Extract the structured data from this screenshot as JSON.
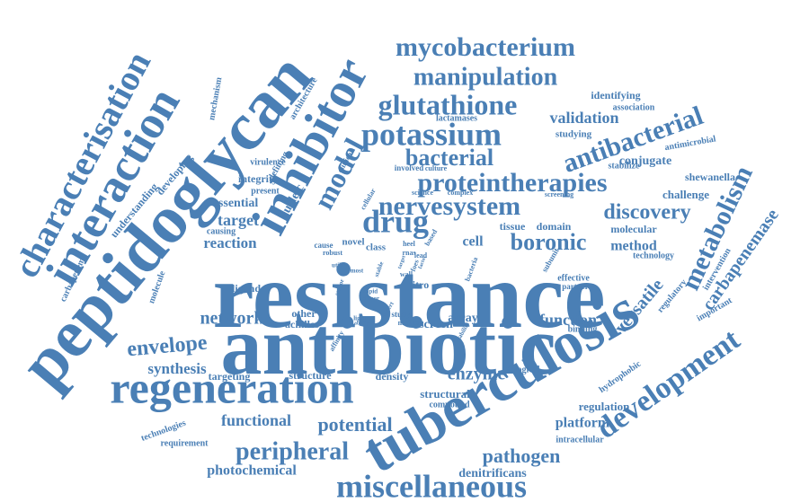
{
  "colors": {
    "word": "#4a7fb5",
    "background": "#ffffff"
  },
  "words": [
    "resistance",
    "antibiotic",
    "peptidoglycan",
    "tuberculosis",
    "regeneration",
    "interaction",
    "characterisation",
    "inhibitor",
    "development",
    "miscellaneous",
    "mycobacterium",
    "manipulation",
    "glutathione",
    "potassium",
    "antibacterial",
    "proteintherapies",
    "metabolism",
    "drug",
    "model",
    "nervesystem",
    "boronic",
    "discovery",
    "bacterial",
    "validation",
    "peripheral",
    "envelope",
    "network",
    "potential",
    "functional",
    "pathogen",
    "enzyme",
    "photochemical",
    "platform",
    "synthesis",
    "target",
    "reaction",
    "carbapenemase",
    "versatile",
    "function",
    "method",
    "conjugate",
    "challenge",
    "cell",
    "array",
    "screen",
    "structural",
    "regulation",
    "denitrificans",
    "targeting",
    "structure",
    "density",
    "other",
    "achilles",
    "ligand",
    "shewanella",
    "identifying",
    "association",
    "studying",
    "antimicrobial",
    "lactamases",
    "stabilize",
    "molecular",
    "tissue",
    "domain",
    "essential",
    "nucleic",
    "integrity",
    "present",
    "understanding",
    "developing",
    "virulence",
    "mechanism",
    "defining",
    "architecture",
    "carbapenems",
    "molecule",
    "causing",
    "technologies",
    "requirement",
    "intracellular",
    "hydrophobic",
    "biological",
    "compound",
    "binding",
    "regulatory",
    "intervention",
    "technology",
    "effective",
    "partner",
    "important",
    "subunit",
    "involved",
    "culture",
    "science",
    "complex",
    "screening",
    "clinical",
    "novel",
    "class",
    "vitro",
    "based",
    "medical",
    "study",
    "affinity",
    "stability",
    "wall",
    "robust",
    "utility",
    "most",
    "heel",
    "rnas",
    "lead",
    "foes",
    "cause",
    "rapid",
    "dimer",
    "expert",
    "light",
    "sensor",
    "factor",
    "stable",
    "bacteria",
    "ability",
    "cellular",
    "target"
  ]
}
